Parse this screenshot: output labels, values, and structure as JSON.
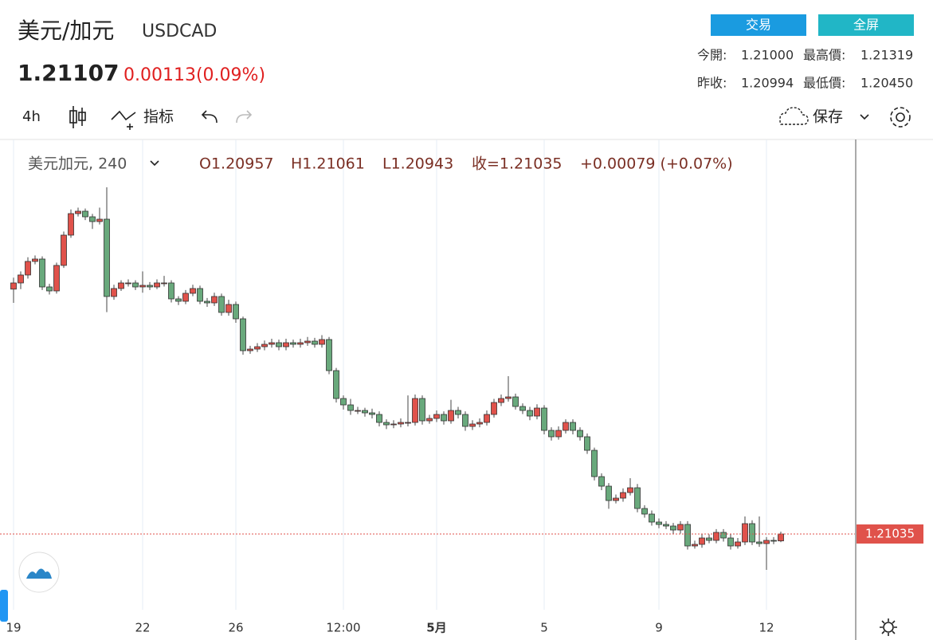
{
  "header": {
    "title": "美元/加元",
    "symbol": "USDCAD",
    "price": "1.21107",
    "change": "0.00113(0.09%)",
    "buttons": [
      "交易",
      "全屏"
    ],
    "stats": [
      [
        "今開:",
        "1.21000",
        "最高價:",
        "1.21319"
      ],
      [
        "昨收:",
        "1.20994",
        "最低價:",
        "1.20450"
      ]
    ]
  },
  "toolbar": {
    "interval": "4h",
    "indicators": "指标",
    "save": "保存"
  },
  "chart_data": {
    "type": "candlestick",
    "legend": {
      "symbol": "美元加元, 240",
      "open": "O1.20957",
      "high": "H1.21061",
      "low": "L1.20943",
      "close": "收=1.21035",
      "change": "+0.00079 (+0.07%)"
    },
    "categories": [
      "19",
      null,
      null,
      null,
      null,
      null,
      null,
      null,
      null,
      null,
      null,
      null,
      null,
      null,
      null,
      null,
      null,
      null,
      "22",
      null,
      null,
      null,
      null,
      null,
      null,
      null,
      null,
      null,
      null,
      null,
      null,
      "26",
      null,
      null,
      null,
      null,
      null,
      null,
      null,
      null,
      null,
      null,
      null,
      null,
      null,
      null,
      "12:00",
      null,
      null,
      null,
      null,
      null,
      null,
      null,
      null,
      null,
      null,
      null,
      null,
      "5月",
      null,
      null,
      null,
      null,
      null,
      null,
      null,
      null,
      null,
      null,
      null,
      null,
      null,
      null,
      "5",
      null,
      null,
      null,
      null,
      null,
      null,
      null,
      null,
      null,
      null,
      null,
      null,
      null,
      null,
      null,
      "9",
      null,
      null,
      null,
      null,
      null,
      null,
      null,
      null,
      null,
      null,
      null,
      null,
      null,
      null,
      "12",
      null,
      null
    ],
    "open": [
      1.238,
      1.2387,
      1.2396,
      1.24113,
      1.2414,
      1.23825,
      1.2378,
      1.24068,
      1.2441,
      1.24653,
      1.2468,
      1.24617,
      1.24563,
      1.2459,
      1.23717,
      1.23807,
      1.2387,
      1.2387,
      1.23825,
      1.23843,
      1.23825,
      1.2387,
      1.2387,
      1.2369,
      1.23663,
      1.23753,
      1.23807,
      1.23663,
      1.23645,
      1.23717,
      1.23537,
      1.23627,
      1.23465,
      1.23105,
      1.23123,
      1.2315,
      1.23177,
      1.23195,
      1.2315,
      1.23195,
      1.23177,
      1.23195,
      1.23213,
      1.23177,
      1.23231,
      1.2288,
      1.22565,
      1.22493,
      1.2243,
      1.2243,
      1.22403,
      1.22385,
      1.22295,
      1.22268,
      1.22277,
      1.22295,
      1.22295,
      1.22565,
      1.22313,
      1.2234,
      1.22385,
      1.22313,
      1.2243,
      1.22385,
      1.2225,
      1.22277,
      1.22295,
      1.22385,
      1.2252,
      1.22565,
      1.22583,
      1.22475,
      1.2243,
      1.22367,
      1.22457,
      1.22205,
      1.22133,
      1.22205,
      1.22295,
      1.22205,
      1.22133,
      1.2198,
      1.21683,
      1.21575,
      1.21413,
      1.2144,
      1.21503,
      1.21557,
      1.21323,
      1.2126,
      1.2117,
      1.21143,
      1.21125,
      1.2108,
      1.21143,
      1.209,
      1.20918,
      1.2099,
      1.20963,
      1.21053,
      1.2099,
      1.209,
      1.20945,
      1.21152,
      1.20945,
      1.20927,
      1.20963,
      1.20957
    ],
    "high": [
      1.2393,
      1.24,
      1.2416,
      1.2418,
      1.2417,
      1.2386,
      1.241,
      1.2445,
      1.247,
      1.2472,
      1.2471,
      1.2465,
      1.2472,
      1.2495,
      1.2385,
      1.239,
      1.2391,
      1.239,
      1.24,
      1.2388,
      1.2391,
      1.2395,
      1.239,
      1.2372,
      1.2379,
      1.2385,
      1.2384,
      1.237,
      1.2376,
      1.2375,
      1.2368,
      1.2366,
      1.2349,
      1.2316,
      1.2319,
      1.2322,
      1.2324,
      1.2323,
      1.2324,
      1.2323,
      1.2324,
      1.2326,
      1.2325,
      1.2328,
      1.2326,
      1.2291,
      1.226,
      1.2256,
      1.2247,
      1.2246,
      1.2245,
      1.2242,
      1.2233,
      1.2232,
      1.2234,
      1.226,
      1.2261,
      1.226,
      1.2238,
      1.2243,
      1.2242,
      1.2255,
      1.2247,
      1.2242,
      1.2232,
      1.2234,
      1.2243,
      1.2256,
      1.2261,
      1.22817,
      1.2262,
      1.2251,
      1.2247,
      1.225,
      1.2249,
      1.2224,
      1.2225,
      1.2233,
      1.2233,
      1.2224,
      1.2217,
      1.2201,
      1.2172,
      1.2161,
      1.2148,
      1.2155,
      1.21665,
      1.216,
      1.2136,
      1.213,
      1.2121,
      1.2118,
      1.2116,
      1.2118,
      1.2118,
      1.2096,
      1.2103,
      1.2103,
      1.2109,
      1.2109,
      1.2103,
      1.2099,
      1.21233,
      1.2119,
      1.21233,
      1.21,
      1.21,
      1.21061
    ],
    "low": [
      1.23645,
      1.238,
      1.2392,
      1.2408,
      1.2379,
      1.2374,
      1.2375,
      1.2404,
      1.2438,
      1.2462,
      1.2458,
      1.2448,
      1.2453,
      1.2354,
      1.2368,
      1.2378,
      1.2383,
      1.2379,
      1.2376,
      1.2379,
      1.238,
      1.2383,
      1.2365,
      1.2362,
      1.2363,
      1.2372,
      1.2363,
      1.236,
      1.2361,
      1.235,
      1.235,
      1.2342,
      1.2306,
      1.2307,
      1.2309,
      1.2311,
      1.2314,
      1.2311,
      1.2311,
      1.2314,
      1.2314,
      1.2316,
      1.2314,
      1.2314,
      1.2284,
      1.2252,
      1.2244,
      1.2238,
      1.2239,
      1.2236,
      1.2234,
      1.2225,
      1.2222,
      1.2223,
      1.2224,
      1.2225,
      1.2226,
      1.2227,
      1.2228,
      1.223,
      1.2227,
      1.2228,
      1.2234,
      1.222,
      1.2221,
      1.2224,
      1.2226,
      1.2235,
      1.2248,
      1.2253,
      1.2244,
      1.2239,
      1.2232,
      1.2233,
      1.2216,
      1.2209,
      1.221,
      1.2217,
      1.2216,
      1.2209,
      1.2194,
      1.2164,
      1.2153,
      1.2132,
      1.2138,
      1.214,
      1.2147,
      1.2128,
      1.2122,
      1.2113,
      1.211,
      1.2109,
      1.2104,
      1.2104,
      1.2086,
      1.2087,
      1.2088,
      1.2093,
      1.2093,
      1.2095,
      1.2086,
      1.2087,
      1.2091,
      1.2091,
      1.2089,
      1.2063,
      1.2092,
      1.20943
    ],
    "close": [
      1.2387,
      1.2396,
      1.24113,
      1.2414,
      1.23825,
      1.2378,
      1.24068,
      1.2441,
      1.24653,
      1.2468,
      1.24617,
      1.24563,
      1.2459,
      1.23717,
      1.23807,
      1.2387,
      1.2387,
      1.23825,
      1.23843,
      1.23825,
      1.2387,
      1.2387,
      1.2369,
      1.23663,
      1.23753,
      1.23807,
      1.23663,
      1.23645,
      1.23717,
      1.23537,
      1.23627,
      1.23465,
      1.23105,
      1.23123,
      1.2315,
      1.23177,
      1.23195,
      1.2315,
      1.23195,
      1.23177,
      1.23195,
      1.23213,
      1.23177,
      1.23231,
      1.2288,
      1.22565,
      1.22493,
      1.2243,
      1.2243,
      1.22403,
      1.22385,
      1.22295,
      1.22268,
      1.22277,
      1.22295,
      1.22295,
      1.22565,
      1.22313,
      1.2234,
      1.22385,
      1.22313,
      1.2243,
      1.22385,
      1.2225,
      1.22277,
      1.22295,
      1.22385,
      1.2252,
      1.22565,
      1.22583,
      1.22475,
      1.2243,
      1.22367,
      1.22457,
      1.22205,
      1.22133,
      1.22205,
      1.22295,
      1.22205,
      1.22133,
      1.2198,
      1.21683,
      1.21575,
      1.21413,
      1.2144,
      1.21503,
      1.21557,
      1.21323,
      1.2126,
      1.2117,
      1.21143,
      1.21125,
      1.2108,
      1.21143,
      1.209,
      1.20918,
      1.2099,
      1.20963,
      1.21053,
      1.2099,
      1.209,
      1.20945,
      1.21152,
      1.20945,
      1.20927,
      1.20963,
      1.20957,
      1.21035
    ],
    "ylim": [
      1.2018,
      1.2549
    ],
    "up_color": "#e0524b",
    "down_color": "#69a97c",
    "last_price": 1.21035,
    "last_price_color": "#e0524b",
    "grid": true
  }
}
